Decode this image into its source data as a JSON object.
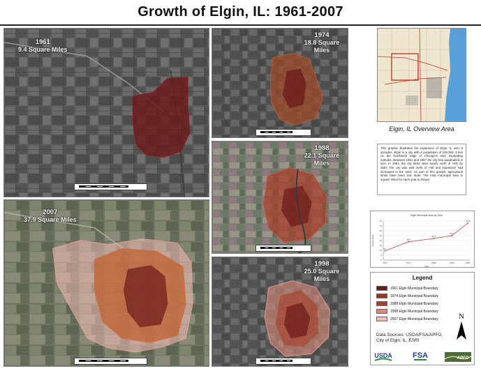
{
  "title": "Growth of Elgin, IL: 1961-2007",
  "panels": [
    {
      "year": "1961",
      "area": "9.4 Square Miles"
    },
    {
      "year": "1974",
      "area": "18.8 Square Miles"
    },
    {
      "year": "2007",
      "area": "37.9 Square Miles"
    },
    {
      "year": "1988",
      "area": "22.1 Square Miles"
    },
    {
      "year": "1998",
      "area": "25.0 Square Miles"
    }
  ],
  "scalebar": {
    "ticks": [
      "0",
      "0.5",
      "1",
      "2",
      "3",
      "4"
    ],
    "unit": "Miles"
  },
  "overview": {
    "caption": "Elgin, IL Overview Area"
  },
  "description": "This graphic illustrates the expansion of Elgin, IL over 5 decades. Elgin is a city with a population of 106,063. It lies on the Northwest edge of Chicago's ever expanding suburbs. Between 1961 and 2007 the city has quadrupled in size. In 1961, the city limits were barely north of I-90; by 2007, the city was well north of I-90 and expansion had increased to the west. As part of this growth, agricultural lands have been lost. Note: The total municipal area in square miles for each year is shown.",
  "chart_data": {
    "type": "line",
    "title": "Elgin Municipal Area by Year",
    "xlabel": "Year",
    "ylabel": "Square Miles",
    "x": [
      1961,
      1974,
      1988,
      1998,
      2007
    ],
    "xticks": [
      "1961",
      "1974",
      "1988",
      "1998",
      "2007"
    ],
    "yticks": [
      "0",
      "5",
      "10",
      "15",
      "20",
      "25",
      "30",
      "35",
      "40"
    ],
    "ylim": [
      0,
      40
    ],
    "xlim": [
      1960,
      2008
    ],
    "series": [
      {
        "values": [
          9.4,
          18.8,
          22.1,
          25.0,
          37.9
        ],
        "labels": [
          "9.4",
          "18.8",
          "22.1",
          "25.0",
          "37.9"
        ]
      }
    ],
    "grid": true,
    "color": "#d9534f"
  },
  "legend": {
    "title": "Legend",
    "items": [
      {
        "label": "1961 Elgin Municipal Boundary",
        "color": "#6b1a1a"
      },
      {
        "label": "1974 Elgin Municipal Boundary",
        "color": "#8e3b24"
      },
      {
        "label": "1988 Elgin Municipal Boundary",
        "color": "#a8402c"
      },
      {
        "label": "1998 Elgin Municipal Boundary",
        "color": "#d98a7a"
      },
      {
        "label": "2007 Elgin Municipal Boundary",
        "color": "#f2bcb6"
      }
    ]
  },
  "north": "N",
  "sources": {
    "line1": "Data Sources:  USDA/FSA/APFO,",
    "line2": "City of Elgin, IL, ESRI"
  },
  "logos": {
    "usda": "USDA",
    "fsa": "FSA",
    "apfo": "APFO"
  },
  "colors": {
    "boundary_1961": "#6b1a1a",
    "boundary_1974": "#9a4a2a",
    "boundary_2007": "#c0602e",
    "imagery": "#5f5f5f"
  }
}
